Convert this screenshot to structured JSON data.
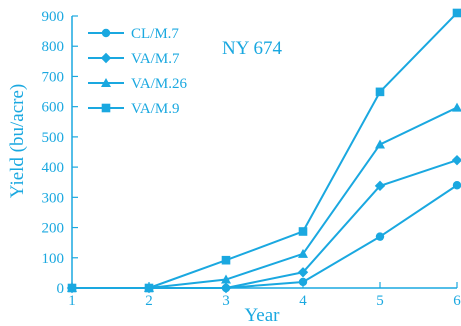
{
  "chart_data": {
    "type": "line",
    "title": "",
    "annotation": "NY 674",
    "xlabel": "Year",
    "ylabel": "Yield (bu/acre)",
    "x": [
      1,
      2,
      3,
      4,
      5,
      6
    ],
    "xticks": [
      "1",
      "2",
      "3",
      "4",
      "5",
      "6"
    ],
    "xlim": [
      1,
      6
    ],
    "ylim": [
      0,
      900
    ],
    "yticks": [
      "0",
      "100",
      "200",
      "300",
      "400",
      "500",
      "600",
      "700",
      "800",
      "900"
    ],
    "grid": false,
    "legend_position": "top-left",
    "color": "#1aa8e0",
    "series": [
      {
        "name": "CL/M.7",
        "marker": "circle",
        "values": [
          0,
          0,
          0,
          20,
          170,
          340
        ]
      },
      {
        "name": "VA/M.7",
        "marker": "diamond",
        "values": [
          0,
          0,
          0,
          52,
          338,
          423
        ]
      },
      {
        "name": "VA/M.26",
        "marker": "triangle",
        "values": [
          0,
          0,
          28,
          113,
          475,
          597
        ]
      },
      {
        "name": "VA/M.9",
        "marker": "square",
        "values": [
          0,
          0,
          92,
          187,
          649,
          910
        ]
      }
    ]
  }
}
